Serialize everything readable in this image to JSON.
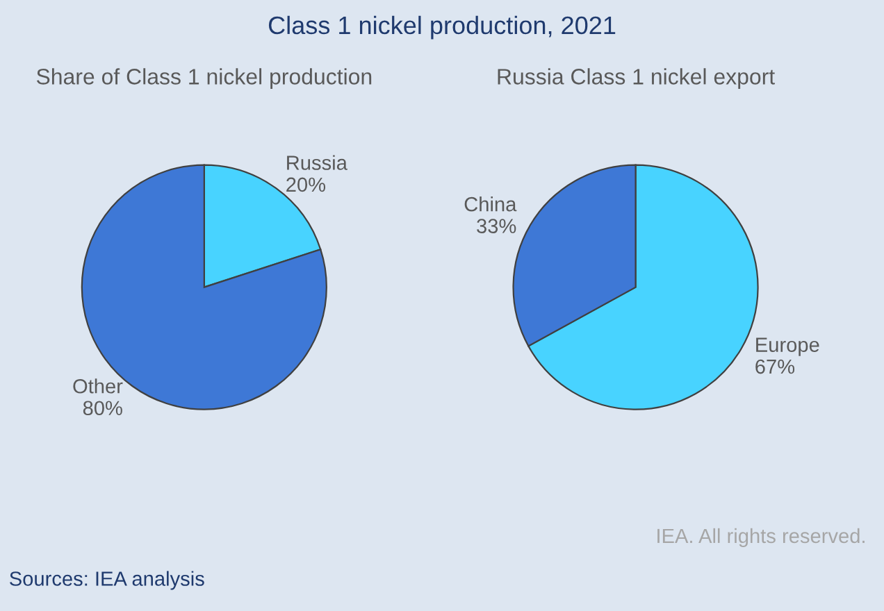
{
  "chart_data": [
    {
      "type": "pie",
      "title": "Class 1 nickel production, 2021",
      "subtitle": "Share of Class 1 nickel production",
      "categories": [
        "Russia",
        "Other"
      ],
      "values": [
        20,
        80
      ],
      "colors": [
        "#48d3ff",
        "#3e78d6"
      ],
      "value_labels": [
        "20%",
        "80%"
      ]
    },
    {
      "type": "pie",
      "subtitle": "Russia Class 1 nickel export",
      "categories": [
        "Europe",
        "China"
      ],
      "values": [
        67,
        33
      ],
      "colors": [
        "#48d3ff",
        "#3e78d6"
      ],
      "value_labels": [
        "67%",
        "33%"
      ],
      "annotations": [
        "IEA. All rights reserved.",
        "Sources: IEA analysis"
      ]
    }
  ]
}
